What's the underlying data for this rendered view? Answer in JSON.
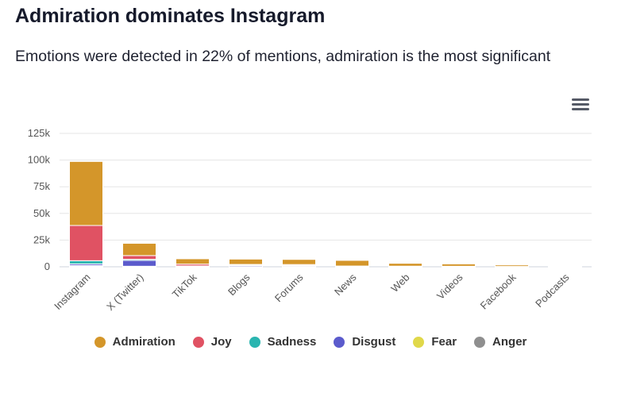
{
  "header": {
    "title": "Admiration dominates Instagram",
    "subtitle": "Emotions were detected in 22% of mentions, admiration is the most significant"
  },
  "menu": {
    "icon": "hamburger-menu-icon"
  },
  "chart_data": {
    "type": "bar",
    "stacked": true,
    "categories": [
      "Instagram",
      "X (Twitter)",
      "TikTok",
      "Blogs",
      "Forums",
      "News",
      "Web",
      "Videos",
      "Facebook",
      "Podcasts"
    ],
    "series": [
      {
        "name": "Anger",
        "color": "#8f8f8f",
        "values": [
          800,
          200,
          100,
          100,
          100,
          50,
          30,
          30,
          20,
          10
        ]
      },
      {
        "name": "Fear",
        "color": "#e0d84a",
        "values": [
          400,
          300,
          100,
          100,
          100,
          50,
          30,
          30,
          20,
          10
        ]
      },
      {
        "name": "Disgust",
        "color": "#5b5bcc",
        "values": [
          1500,
          5500,
          300,
          1000,
          800,
          150,
          100,
          60,
          30,
          10
        ]
      },
      {
        "name": "Sadness",
        "color": "#2ab5b0",
        "values": [
          3000,
          1000,
          300,
          400,
          300,
          150,
          100,
          80,
          30,
          10
        ]
      },
      {
        "name": "Joy",
        "color": "#e05263",
        "values": [
          33000,
          3500,
          1700,
          600,
          800,
          300,
          300,
          300,
          200,
          20
        ]
      },
      {
        "name": "Admiration",
        "color": "#d4962a",
        "values": [
          60000,
          11500,
          5000,
          5000,
          4800,
          5300,
          2700,
          2200,
          1400,
          200
        ]
      }
    ],
    "legend_order": [
      "Admiration",
      "Joy",
      "Sadness",
      "Disgust",
      "Fear",
      "Anger"
    ],
    "yticks": [
      "0",
      "25k",
      "50k",
      "75k",
      "100k",
      "125k"
    ],
    "ylim": [
      0,
      125000
    ],
    "grid": true,
    "legend_position": "bottom"
  }
}
